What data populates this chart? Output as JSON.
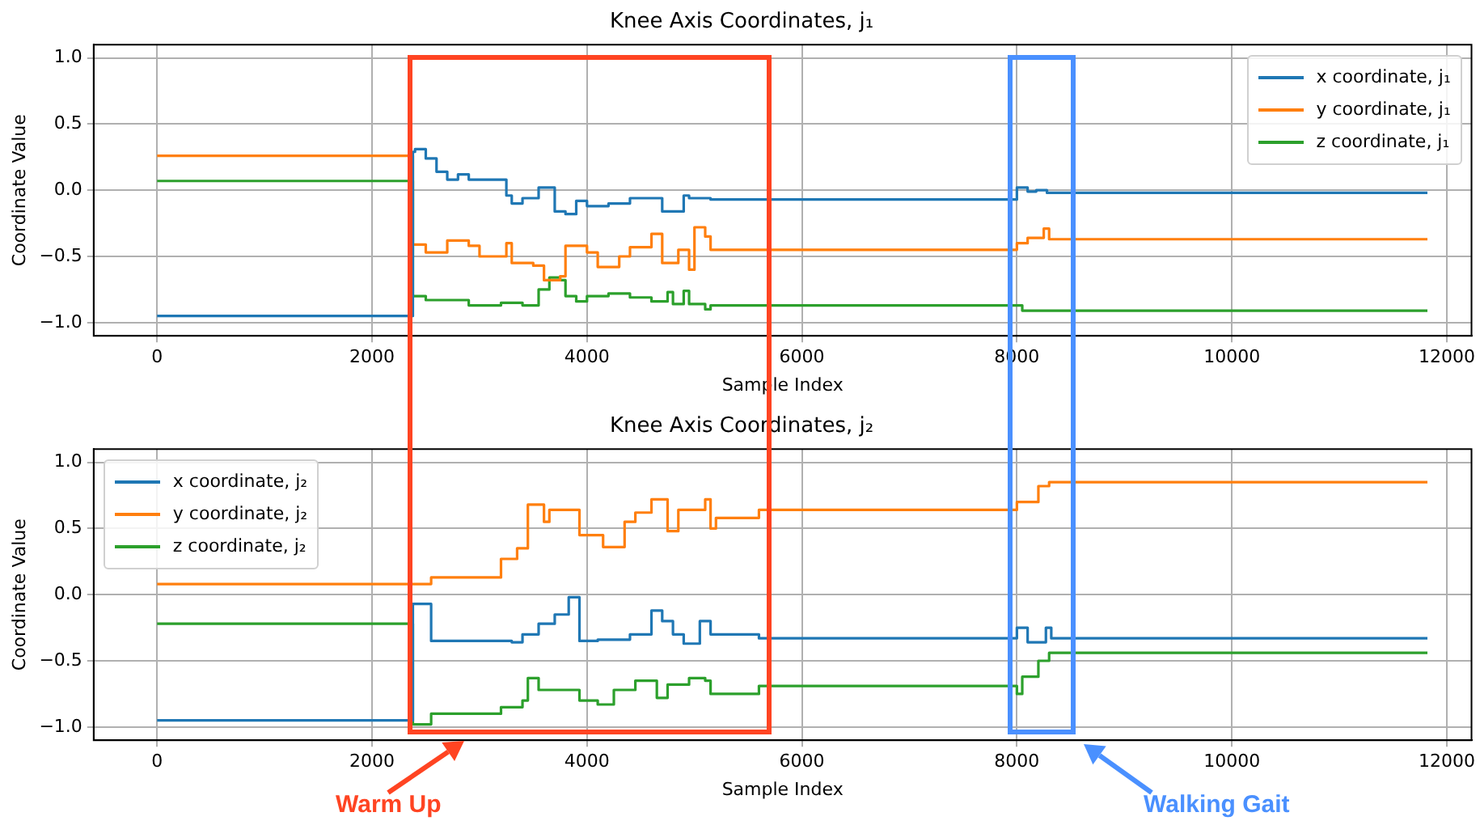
{
  "chart_data": [
    {
      "type": "step",
      "title": "Knee Axis Coordinates, j₁",
      "xlabel": "Sample Index",
      "ylabel": "Coordinate Value",
      "xlim": [
        -590,
        12230
      ],
      "ylim": [
        -1.1,
        1.1
      ],
      "xticks": [
        0,
        2000,
        4000,
        6000,
        8000,
        10000,
        12000
      ],
      "yticks": [
        {
          "value": -1,
          "label": "−1.0"
        },
        {
          "value": -0.5,
          "label": "−0.5"
        },
        {
          "value": 0,
          "label": "0.0"
        },
        {
          "value": 0.5,
          "label": "0.5"
        },
        {
          "value": 1,
          "label": "1.0"
        }
      ],
      "grid": true,
      "legend": "top right",
      "line_style": "solid",
      "series": [
        {
          "name": "x coordinate, j₁",
          "color": "#1f77b4",
          "x": [
            0,
            2380,
            2400,
            2500,
            2600,
            2700,
            2800,
            2900,
            3100,
            3250,
            3300,
            3400,
            3550,
            3700,
            3800,
            3900,
            4000,
            4200,
            4400,
            4700,
            4900,
            4950,
            5150,
            8000,
            8100,
            8180,
            8280,
            11820
          ],
          "values": [
            -0.95,
            0.29,
            0.31,
            0.24,
            0.14,
            0.08,
            0.12,
            0.08,
            0.08,
            -0.04,
            -0.1,
            -0.06,
            0.02,
            -0.16,
            -0.18,
            -0.08,
            -0.12,
            -0.1,
            -0.06,
            -0.16,
            -0.04,
            -0.06,
            -0.07,
            0.02,
            -0.01,
            0.0,
            -0.02,
            -0.02
          ]
        },
        {
          "name": "y coordinate, j₁",
          "color": "#ff7f0e",
          "x": [
            0,
            2380,
            2500,
            2700,
            2900,
            3000,
            3250,
            3300,
            3500,
            3600,
            3750,
            3800,
            4000,
            4100,
            4300,
            4400,
            4600,
            4700,
            4850,
            4950,
            5000,
            5100,
            5150,
            8000,
            8100,
            8250,
            8300,
            11820
          ],
          "values": [
            0.26,
            -0.41,
            -0.47,
            -0.38,
            -0.42,
            -0.5,
            -0.4,
            -0.55,
            -0.57,
            -0.68,
            -0.65,
            -0.42,
            -0.47,
            -0.58,
            -0.5,
            -0.43,
            -0.33,
            -0.55,
            -0.45,
            -0.6,
            -0.28,
            -0.35,
            -0.45,
            -0.4,
            -0.36,
            -0.29,
            -0.37,
            -0.37
          ]
        },
        {
          "name": "z coordinate, j₁",
          "color": "#2ca02c",
          "x": [
            0,
            2380,
            2500,
            2900,
            3200,
            3400,
            3550,
            3650,
            3750,
            3800,
            3900,
            4000,
            4200,
            4400,
            4600,
            4750,
            4800,
            4900,
            4950,
            5100,
            5150,
            8050,
            11820
          ],
          "values": [
            0.07,
            -0.8,
            -0.83,
            -0.87,
            -0.85,
            -0.87,
            -0.75,
            -0.66,
            -0.68,
            -0.8,
            -0.84,
            -0.8,
            -0.78,
            -0.81,
            -0.84,
            -0.77,
            -0.86,
            -0.76,
            -0.86,
            -0.9,
            -0.87,
            -0.91,
            -0.91
          ]
        }
      ]
    },
    {
      "type": "step",
      "title": "Knee Axis Coordinates, j₂",
      "xlabel": "Sample Index",
      "ylabel": "Coordinate Value",
      "xlim": [
        -590,
        12230
      ],
      "ylim": [
        -1.1,
        1.1
      ],
      "xticks": [
        0,
        2000,
        4000,
        6000,
        8000,
        10000,
        12000
      ],
      "yticks": [
        {
          "value": -1,
          "label": "−1.0"
        },
        {
          "value": -0.5,
          "label": "−0.5"
        },
        {
          "value": 0,
          "label": "0.0"
        },
        {
          "value": 0.5,
          "label": "0.5"
        },
        {
          "value": 1,
          "label": "1.0"
        }
      ],
      "grid": true,
      "legend": "top left",
      "line_style": "solid",
      "annotations": [
        "Warm Up",
        "Walking Gait"
      ],
      "series": [
        {
          "name": "x coordinate, j₂",
          "color": "#1f77b4",
          "x": [
            0,
            2380,
            2550,
            3300,
            3400,
            3550,
            3700,
            3830,
            3930,
            4100,
            4400,
            4600,
            4700,
            4800,
            4900,
            5050,
            5150,
            5600,
            8000,
            8100,
            8270,
            8320,
            11820
          ],
          "values": [
            -0.95,
            -0.07,
            -0.35,
            -0.36,
            -0.3,
            -0.22,
            -0.15,
            -0.02,
            -0.35,
            -0.34,
            -0.3,
            -0.12,
            -0.2,
            -0.3,
            -0.37,
            -0.2,
            -0.3,
            -0.33,
            -0.25,
            -0.36,
            -0.25,
            -0.33,
            -0.33
          ]
        },
        {
          "name": "y coordinate, j₂",
          "color": "#ff7f0e",
          "x": [
            0,
            2550,
            3200,
            3350,
            3450,
            3600,
            3650,
            3930,
            4150,
            4350,
            4450,
            4600,
            4750,
            4850,
            5100,
            5150,
            5200,
            5600,
            8000,
            8200,
            8300,
            11820
          ],
          "values": [
            0.08,
            0.13,
            0.27,
            0.35,
            0.68,
            0.55,
            0.64,
            0.45,
            0.36,
            0.55,
            0.62,
            0.72,
            0.48,
            0.64,
            0.72,
            0.5,
            0.58,
            0.64,
            0.7,
            0.82,
            0.85,
            0.85
          ]
        },
        {
          "name": "z coordinate, j₂",
          "color": "#2ca02c",
          "x": [
            0,
            2380,
            2550,
            3200,
            3400,
            3450,
            3550,
            3930,
            4100,
            4250,
            4450,
            4650,
            4750,
            4950,
            5100,
            5150,
            5600,
            8000,
            8050,
            8200,
            8300,
            11820
          ],
          "values": [
            -0.22,
            -0.98,
            -0.9,
            -0.85,
            -0.8,
            -0.63,
            -0.72,
            -0.8,
            -0.83,
            -0.72,
            -0.65,
            -0.78,
            -0.68,
            -0.63,
            -0.65,
            -0.75,
            -0.69,
            -0.75,
            -0.62,
            -0.5,
            -0.44,
            -0.44
          ]
        }
      ]
    }
  ]
}
